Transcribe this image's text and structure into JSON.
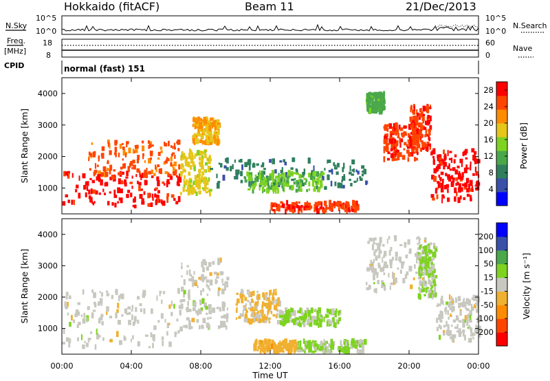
{
  "header": {
    "station": "Hokkaido (fitACF)",
    "beam": "Beam 11",
    "date": "21/Dec/2013"
  },
  "strip_panels": {
    "nsky_label": "N.Sky",
    "nsky_ticks": [
      "10^5",
      "10^0"
    ],
    "nsearch_label": "N.Search",
    "nsearch_ticks": [
      "10^5",
      "10^0"
    ],
    "freq_label": "Freq.",
    "freq_unit": "[MHz]",
    "freq_ticks": [
      "18",
      "8"
    ],
    "nave_label": "Nave",
    "nave_ticks": [
      "60",
      "0"
    ],
    "cpid_label": "CPID",
    "cpid_value": "normal (fast) 151"
  },
  "chart_data": [
    {
      "type": "heatmap",
      "panel": "power",
      "ylabel": "Slant Range [km]",
      "xlabel": "Time UT",
      "ylim": [
        180,
        4500
      ],
      "xlim": [
        0,
        24
      ],
      "yticks": [
        "1000",
        "2000",
        "3000",
        "4000"
      ],
      "xticks": [
        "00:00",
        "04:00",
        "08:00",
        "12:00",
        "16:00",
        "20:00",
        "00:00"
      ],
      "colorbar": {
        "label": "Power [dB]",
        "ticks": [
          "4",
          "8",
          "12",
          "16",
          "20",
          "24",
          "28"
        ],
        "range": [
          0,
          30
        ],
        "colors": [
          "#0000ff",
          "#3a50a8",
          "#2f7f5e",
          "#4aa84a",
          "#7ed321",
          "#e6c619",
          "#ff8c00",
          "#ff4500",
          "#ff0000"
        ]
      },
      "regions": [
        {
          "t0": 0.0,
          "t1": 6.8,
          "r0": 400,
          "r1": 1500,
          "value": 28
        },
        {
          "t0": 1.5,
          "t1": 6.8,
          "r0": 1400,
          "r1": 2500,
          "value": 24
        },
        {
          "t0": 6.8,
          "t1": 8.5,
          "r0": 800,
          "r1": 2200,
          "value": 18
        },
        {
          "t0": 7.5,
          "t1": 9.0,
          "r0": 2400,
          "r1": 3200,
          "value": 20
        },
        {
          "t0": 8.5,
          "t1": 17.5,
          "r0": 1000,
          "r1": 1900,
          "value": 8
        },
        {
          "t0": 10.5,
          "t1": 15.0,
          "r0": 900,
          "r1": 1500,
          "value": 14
        },
        {
          "t0": 12.0,
          "t1": 17.0,
          "r0": 250,
          "r1": 550,
          "value": 26
        },
        {
          "t0": 17.5,
          "t1": 18.5,
          "r0": 3400,
          "r1": 4000,
          "value": 12
        },
        {
          "t0": 18.5,
          "t1": 20.5,
          "r0": 1900,
          "r1": 3000,
          "value": 26
        },
        {
          "t0": 20.0,
          "t1": 21.2,
          "r0": 2200,
          "r1": 3600,
          "value": 26
        },
        {
          "t0": 21.2,
          "t1": 24.0,
          "r0": 600,
          "r1": 2200,
          "value": 28
        }
      ]
    },
    {
      "type": "heatmap",
      "panel": "velocity",
      "ylabel": "Slant Range [km]",
      "xlabel": "Time UT",
      "ylim": [
        180,
        4500
      ],
      "xlim": [
        0,
        24
      ],
      "yticks": [
        "1000",
        "2000",
        "3000",
        "4000"
      ],
      "xticks": [
        "00:00",
        "04:00",
        "08:00",
        "12:00",
        "16:00",
        "20:00",
        "00:00"
      ],
      "colorbar": {
        "label": "Velocity [m s⁻¹]",
        "ticks": [
          "200",
          "100",
          "50",
          "15",
          "-15",
          "-50",
          "-100",
          "-200"
        ],
        "range": [
          -250,
          250
        ],
        "colors": [
          "#ff0000",
          "#ff4500",
          "#ff8c00",
          "#f0b030",
          "#c8c8c0",
          "#7ed321",
          "#4aa84a",
          "#3a50a8",
          "#0000ff"
        ]
      },
      "regions": [
        {
          "t0": 0.0,
          "t1": 6.8,
          "r0": 400,
          "r1": 2200,
          "value": 0
        },
        {
          "t0": 6.8,
          "t1": 9.5,
          "r0": 1000,
          "r1": 3200,
          "value": 0
        },
        {
          "t0": 10.0,
          "t1": 12.5,
          "r0": 1200,
          "r1": 2200,
          "value": -40
        },
        {
          "t0": 12.5,
          "t1": 16.0,
          "r0": 1100,
          "r1": 1600,
          "value": 40
        },
        {
          "t0": 11.0,
          "t1": 13.5,
          "r0": 250,
          "r1": 600,
          "value": -60
        },
        {
          "t0": 13.5,
          "t1": 17.5,
          "r0": 250,
          "r1": 600,
          "value": 40
        },
        {
          "t0": 17.5,
          "t1": 21.0,
          "r0": 2200,
          "r1": 3900,
          "value": 0
        },
        {
          "t0": 20.5,
          "t1": 21.5,
          "r0": 2000,
          "r1": 3700,
          "value": 35
        },
        {
          "t0": 21.5,
          "t1": 24.0,
          "r0": 600,
          "r1": 2000,
          "value": 0
        }
      ]
    }
  ]
}
